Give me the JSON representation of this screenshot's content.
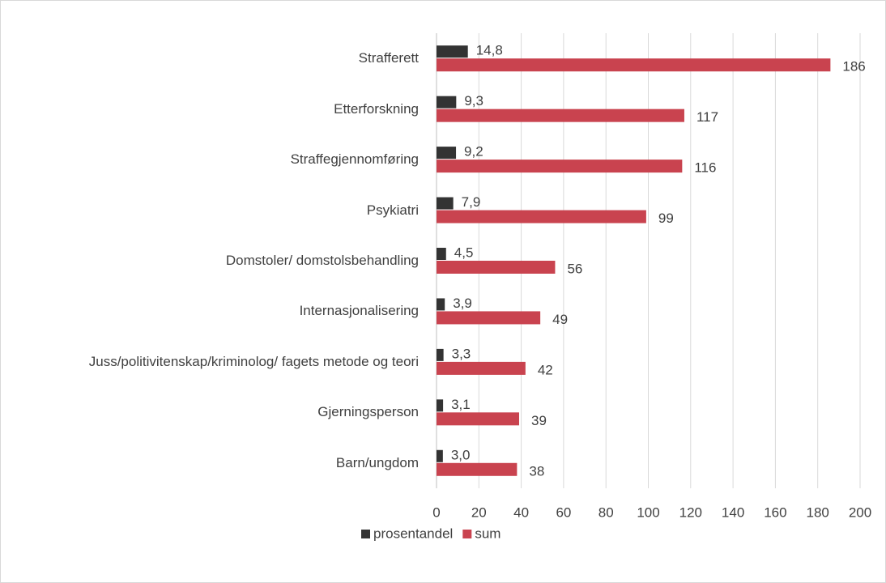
{
  "chart_data": {
    "type": "hbar",
    "categories": [
      "Strafferett",
      "Etterforskning",
      "Straffegjennomføring",
      "Psykiatri",
      "Domstoler/ domstolsbehandling",
      "Internasjonalisering",
      "Juss/politivitenskap/kriminolog/ fagets metode og teori",
      "Gjerningsperson",
      "Barn/ungdom"
    ],
    "series": [
      {
        "name": "prosentandel",
        "color": "#333333",
        "values": [
          14.8,
          9.3,
          9.2,
          7.9,
          4.5,
          3.9,
          3.3,
          3.1,
          3.0
        ],
        "value_labels": [
          "14,8",
          "9,3",
          "9,2",
          "7,9",
          "4,5",
          "3,9",
          "3,3",
          "3,1",
          "3,0"
        ]
      },
      {
        "name": "sum",
        "color": "#c9434f",
        "values": [
          186,
          117,
          116,
          99,
          56,
          49,
          42,
          39,
          38
        ]
      }
    ],
    "xlim": [
      0,
      200
    ],
    "xticks": [
      0,
      20,
      40,
      60,
      80,
      100,
      120,
      140,
      160,
      180,
      200
    ],
    "grid": true,
    "legend": "bottom"
  }
}
